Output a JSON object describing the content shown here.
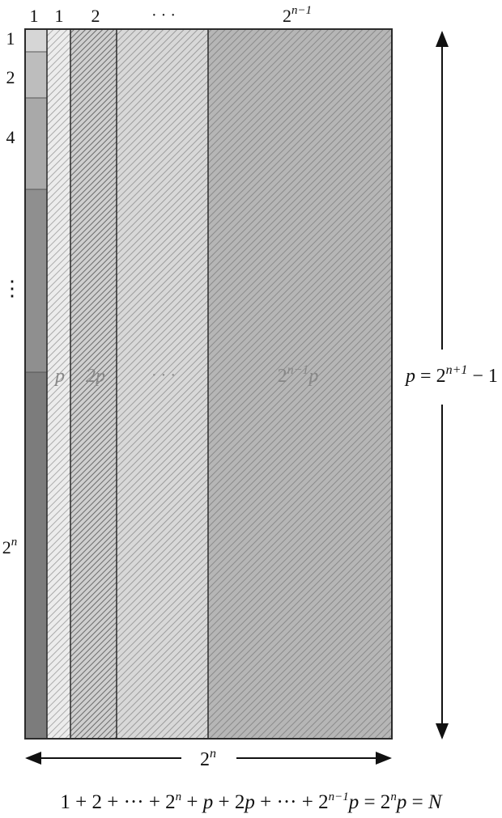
{
  "column_headers": {
    "left_strip": "1",
    "col1": "1",
    "col2": "2",
    "col_dots": "· · ·",
    "col_last_base": "2",
    "col_last_exp": "n−1"
  },
  "strip_labels": {
    "one": "1",
    "two": "2",
    "four": "4",
    "vdots": "⋮",
    "last_base": "2",
    "last_exp": "n"
  },
  "column_values": {
    "col1": "p",
    "col2": "2p",
    "col_dots": "· · ·",
    "col_last_base": "2",
    "col_last_exp": "n−1",
    "col_last_tail": "p"
  },
  "height_label": {
    "lhs": "p",
    "eq": " = 2",
    "exp": "n+1",
    "tail": " − 1"
  },
  "width_label": {
    "base": "2",
    "exp": "n"
  },
  "formula": {
    "a": "1 + 2 + ··· + 2",
    "a_exp": "n",
    "b": " + ",
    "p1": "p",
    "c": " + 2",
    "p2": "p",
    "d": " + ··· + 2",
    "d_exp": "n−1",
    "p3": "p",
    "e": " = 2",
    "e_exp": "n",
    "p4": "p",
    "f": " = ",
    "N": "N"
  },
  "colors": {
    "strip_top": "#d6d6d6",
    "strip_2": "#bdbdbd",
    "strip_4": "#a9a9a9",
    "strip_dots": "#8f8f8f",
    "strip_last": "#7c7c7c",
    "col1_fill": "#e8e8e8",
    "col2_fill": "#bcbcbc",
    "col_dots_fill": "#c8c8c8",
    "col_last_fill": "#a6a6a6",
    "outline": "#2b2b2b"
  }
}
